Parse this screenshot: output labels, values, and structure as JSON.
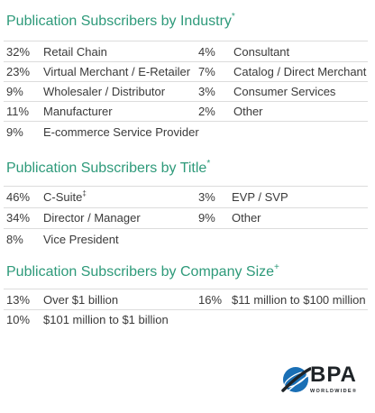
{
  "industry": {
    "title": "Publication Subscribers by Industry",
    "title_mark": "*",
    "left": [
      {
        "pct": "32%",
        "label": "Retail Chain"
      },
      {
        "pct": "23%",
        "label": "Virtual Merchant / E-Retailer"
      },
      {
        "pct": "9%",
        "label": "Wholesaler / Distributor"
      },
      {
        "pct": "11%",
        "label": "Manufacturer"
      },
      {
        "pct": "9%",
        "label": "E-commerce Service Provider"
      }
    ],
    "right": [
      {
        "pct": "4%",
        "label": "Consultant"
      },
      {
        "pct": "7%",
        "label": "Catalog / Direct Merchant"
      },
      {
        "pct": "3%",
        "label": "Consumer Services"
      },
      {
        "pct": "2%",
        "label": "Other"
      }
    ]
  },
  "title_section": {
    "title": "Publication Subscribers by Title",
    "title_mark": "*",
    "left": [
      {
        "pct": "46%",
        "label": "C-Suite",
        "mark": "‡"
      },
      {
        "pct": "34%",
        "label": "Director /  Manager"
      },
      {
        "pct": "8%",
        "label": "Vice President"
      }
    ],
    "right": [
      {
        "pct": "3%",
        "label": "EVP / SVP"
      },
      {
        "pct": "9%",
        "label": "Other"
      }
    ]
  },
  "company_size": {
    "title": "Publication Subscribers by Company Size",
    "title_mark": "+",
    "left": [
      {
        "pct": "13%",
        "label": "Over $1 billion"
      },
      {
        "pct": "10%",
        "label": "$101 million to $1 billion"
      }
    ],
    "right": [
      {
        "pct": "16%",
        "label": "$11 million to $100 million"
      }
    ]
  },
  "logo": {
    "text": "BPA",
    "subtext": "WORLDWIDE®"
  },
  "colors": {
    "heading": "#2e9a7a",
    "body_text": "#3a3a3a",
    "rule": "#dcdcdc",
    "logo_blue": "#1a6fb5"
  }
}
